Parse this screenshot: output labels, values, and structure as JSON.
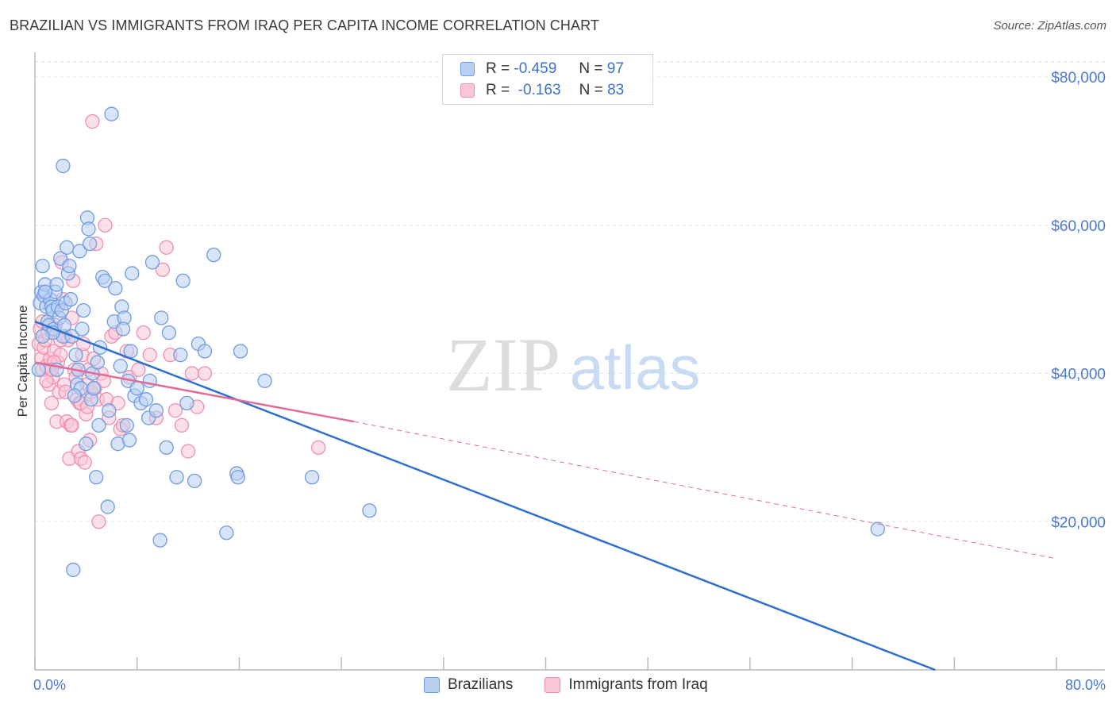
{
  "title": "BRAZILIAN VS IMMIGRANTS FROM IRAQ PER CAPITA INCOME CORRELATION CHART",
  "source": "Source: ZipAtlas.com",
  "watermark": {
    "zip": "ZIP",
    "atlas": "atlas"
  },
  "legend": {
    "r_label": "R =",
    "n_label": "N =",
    "rows": [
      {
        "name": "Brazilians",
        "r": "-0.459",
        "n": "97",
        "fill": "#b8d0f2",
        "stroke": "#6f9be0"
      },
      {
        "name": "Immigrants from Iraq",
        "r": "-0.163",
        "n": "83",
        "fill": "#f9c6d6",
        "stroke": "#ee8fb0"
      }
    ]
  },
  "chart_data": {
    "type": "scatter",
    "xlabel": "",
    "ylabel": "Per Capita Income",
    "xlim": [
      0,
      80
    ],
    "ylim": [
      0,
      80000
    ],
    "x_tick_labels": [
      "0.0%",
      "80.0%"
    ],
    "y_ticks": [
      20000,
      40000,
      60000,
      80000
    ],
    "y_tick_labels": [
      "$20,000",
      "$40,000",
      "$60,000",
      "$80,000"
    ],
    "grid": true,
    "series": [
      {
        "name": "Brazilians",
        "color": "#6f9be0",
        "fill": "#b8d0f2",
        "line_color": "#2e6fd0",
        "trend": {
          "x0": 0,
          "y0": 47000,
          "x1": 70.5,
          "y1": 0,
          "dash_to": null
        },
        "points": [
          [
            0.3,
            40500
          ],
          [
            0.4,
            49500
          ],
          [
            0.5,
            51000
          ],
          [
            0.6,
            54500
          ],
          [
            0.7,
            50500
          ],
          [
            0.8,
            52000
          ],
          [
            0.9,
            49000
          ],
          [
            1.0,
            47000
          ],
          [
            1.1,
            46500
          ],
          [
            1.2,
            50000
          ],
          [
            1.3,
            49000
          ],
          [
            1.4,
            48500
          ],
          [
            1.5,
            46000
          ],
          [
            1.6,
            51000
          ],
          [
            1.7,
            52000
          ],
          [
            1.8,
            49000
          ],
          [
            1.9,
            47500
          ],
          [
            2.0,
            55500
          ],
          [
            2.1,
            48500
          ],
          [
            2.2,
            45000
          ],
          [
            2.3,
            46500
          ],
          [
            2.4,
            49500
          ],
          [
            2.5,
            57000
          ],
          [
            2.6,
            53500
          ],
          [
            2.7,
            54500
          ],
          [
            2.8,
            50000
          ],
          [
            2.9,
            45000
          ],
          [
            3.0,
            13500
          ],
          [
            3.2,
            42500
          ],
          [
            3.3,
            38500
          ],
          [
            3.4,
            40500
          ],
          [
            3.5,
            56500
          ],
          [
            3.6,
            38000
          ],
          [
            3.7,
            46000
          ],
          [
            3.8,
            48500
          ],
          [
            4.0,
            30500
          ],
          [
            4.1,
            61000
          ],
          [
            4.2,
            59500
          ],
          [
            4.3,
            57500
          ],
          [
            4.4,
            36500
          ],
          [
            4.5,
            40000
          ],
          [
            4.6,
            38000
          ],
          [
            4.8,
            26000
          ],
          [
            5.0,
            33000
          ],
          [
            5.1,
            43500
          ],
          [
            5.3,
            53000
          ],
          [
            5.5,
            52500
          ],
          [
            5.7,
            22000
          ],
          [
            5.8,
            35000
          ],
          [
            6.0,
            75000
          ],
          [
            6.2,
            47000
          ],
          [
            6.3,
            51500
          ],
          [
            6.5,
            30500
          ],
          [
            6.7,
            41000
          ],
          [
            6.8,
            49000
          ],
          [
            7.0,
            47500
          ],
          [
            7.2,
            33000
          ],
          [
            7.3,
            39000
          ],
          [
            7.4,
            31000
          ],
          [
            7.5,
            43000
          ],
          [
            7.6,
            53500
          ],
          [
            7.8,
            37000
          ],
          [
            8.0,
            38000
          ],
          [
            8.3,
            36000
          ],
          [
            8.7,
            36500
          ],
          [
            8.9,
            34000
          ],
          [
            9.0,
            39000
          ],
          [
            9.2,
            55000
          ],
          [
            9.5,
            35000
          ],
          [
            9.9,
            47500
          ],
          [
            9.8,
            17500
          ],
          [
            10.3,
            30000
          ],
          [
            10.5,
            45500
          ],
          [
            11.1,
            26000
          ],
          [
            11.4,
            42500
          ],
          [
            11.6,
            52500
          ],
          [
            11.9,
            36000
          ],
          [
            12.5,
            25500
          ],
          [
            12.8,
            44000
          ],
          [
            13.3,
            43000
          ],
          [
            14.0,
            56000
          ],
          [
            15.0,
            18500
          ],
          [
            15.8,
            26500
          ],
          [
            15.9,
            26000
          ],
          [
            16.1,
            43000
          ],
          [
            18.0,
            39000
          ],
          [
            21.7,
            26000
          ],
          [
            26.2,
            21500
          ],
          [
            66.0,
            19000
          ],
          [
            0.8,
            51000
          ],
          [
            1.4,
            45500
          ],
          [
            2.2,
            68000
          ],
          [
            3.1,
            37000
          ],
          [
            1.7,
            40500
          ],
          [
            0.6,
            45000
          ],
          [
            4.9,
            41500
          ],
          [
            6.9,
            46000
          ]
        ]
      },
      {
        "name": "Immigrants from Iraq",
        "color": "#ee8fb0",
        "fill": "#f9c6d6",
        "line_color": "#e56a98",
        "trend": {
          "x0": 0,
          "y0": 41500,
          "x1": 25,
          "y1": 33500,
          "dash_to": [
            80,
            15000
          ]
        },
        "points": [
          [
            0.3,
            44000
          ],
          [
            0.4,
            46000
          ],
          [
            0.5,
            42000
          ],
          [
            0.6,
            40500
          ],
          [
            0.7,
            43500
          ],
          [
            0.8,
            44500
          ],
          [
            0.9,
            41000
          ],
          [
            1.0,
            45500
          ],
          [
            1.1,
            38500
          ],
          [
            1.2,
            42000
          ],
          [
            1.3,
            36000
          ],
          [
            1.4,
            39500
          ],
          [
            1.5,
            43000
          ],
          [
            1.6,
            46500
          ],
          [
            1.7,
            33500
          ],
          [
            1.8,
            41500
          ],
          [
            1.9,
            37500
          ],
          [
            2.0,
            42500
          ],
          [
            2.1,
            55000
          ],
          [
            2.2,
            50000
          ],
          [
            2.3,
            38500
          ],
          [
            2.4,
            45000
          ],
          [
            2.5,
            33500
          ],
          [
            2.6,
            44500
          ],
          [
            2.7,
            28500
          ],
          [
            2.8,
            33000
          ],
          [
            2.9,
            47500
          ],
          [
            3.0,
            52500
          ],
          [
            3.1,
            40500
          ],
          [
            3.2,
            39500
          ],
          [
            3.3,
            36500
          ],
          [
            3.4,
            29500
          ],
          [
            3.5,
            36000
          ],
          [
            3.6,
            28500
          ],
          [
            3.7,
            42500
          ],
          [
            3.8,
            44000
          ],
          [
            3.9,
            28000
          ],
          [
            4.0,
            34500
          ],
          [
            4.1,
            38500
          ],
          [
            4.2,
            40500
          ],
          [
            4.3,
            31000
          ],
          [
            4.4,
            37500
          ],
          [
            4.5,
            74000
          ],
          [
            4.6,
            42000
          ],
          [
            4.7,
            38000
          ],
          [
            4.8,
            57500
          ],
          [
            4.9,
            36500
          ],
          [
            5.0,
            20000
          ],
          [
            5.2,
            40000
          ],
          [
            5.4,
            39000
          ],
          [
            5.5,
            60000
          ],
          [
            5.6,
            36500
          ],
          [
            5.8,
            34000
          ],
          [
            6.0,
            45000
          ],
          [
            6.3,
            45500
          ],
          [
            6.5,
            36000
          ],
          [
            6.7,
            32500
          ],
          [
            6.9,
            33000
          ],
          [
            7.2,
            43000
          ],
          [
            7.4,
            39500
          ],
          [
            8.1,
            40500
          ],
          [
            8.5,
            45500
          ],
          [
            9.0,
            42500
          ],
          [
            9.5,
            34000
          ],
          [
            10.0,
            54000
          ],
          [
            10.3,
            57000
          ],
          [
            10.6,
            42500
          ],
          [
            11.0,
            35000
          ],
          [
            11.5,
            33000
          ],
          [
            12.0,
            29500
          ],
          [
            12.3,
            40000
          ],
          [
            12.7,
            35500
          ],
          [
            13.3,
            40000
          ],
          [
            22.2,
            30000
          ],
          [
            0.6,
            47000
          ],
          [
            1.5,
            41500
          ],
          [
            2.0,
            44500
          ],
          [
            2.9,
            33000
          ],
          [
            3.6,
            36000
          ],
          [
            0.9,
            39000
          ],
          [
            1.3,
            40500
          ],
          [
            4.1,
            35500
          ],
          [
            2.4,
            37500
          ]
        ]
      }
    ]
  }
}
